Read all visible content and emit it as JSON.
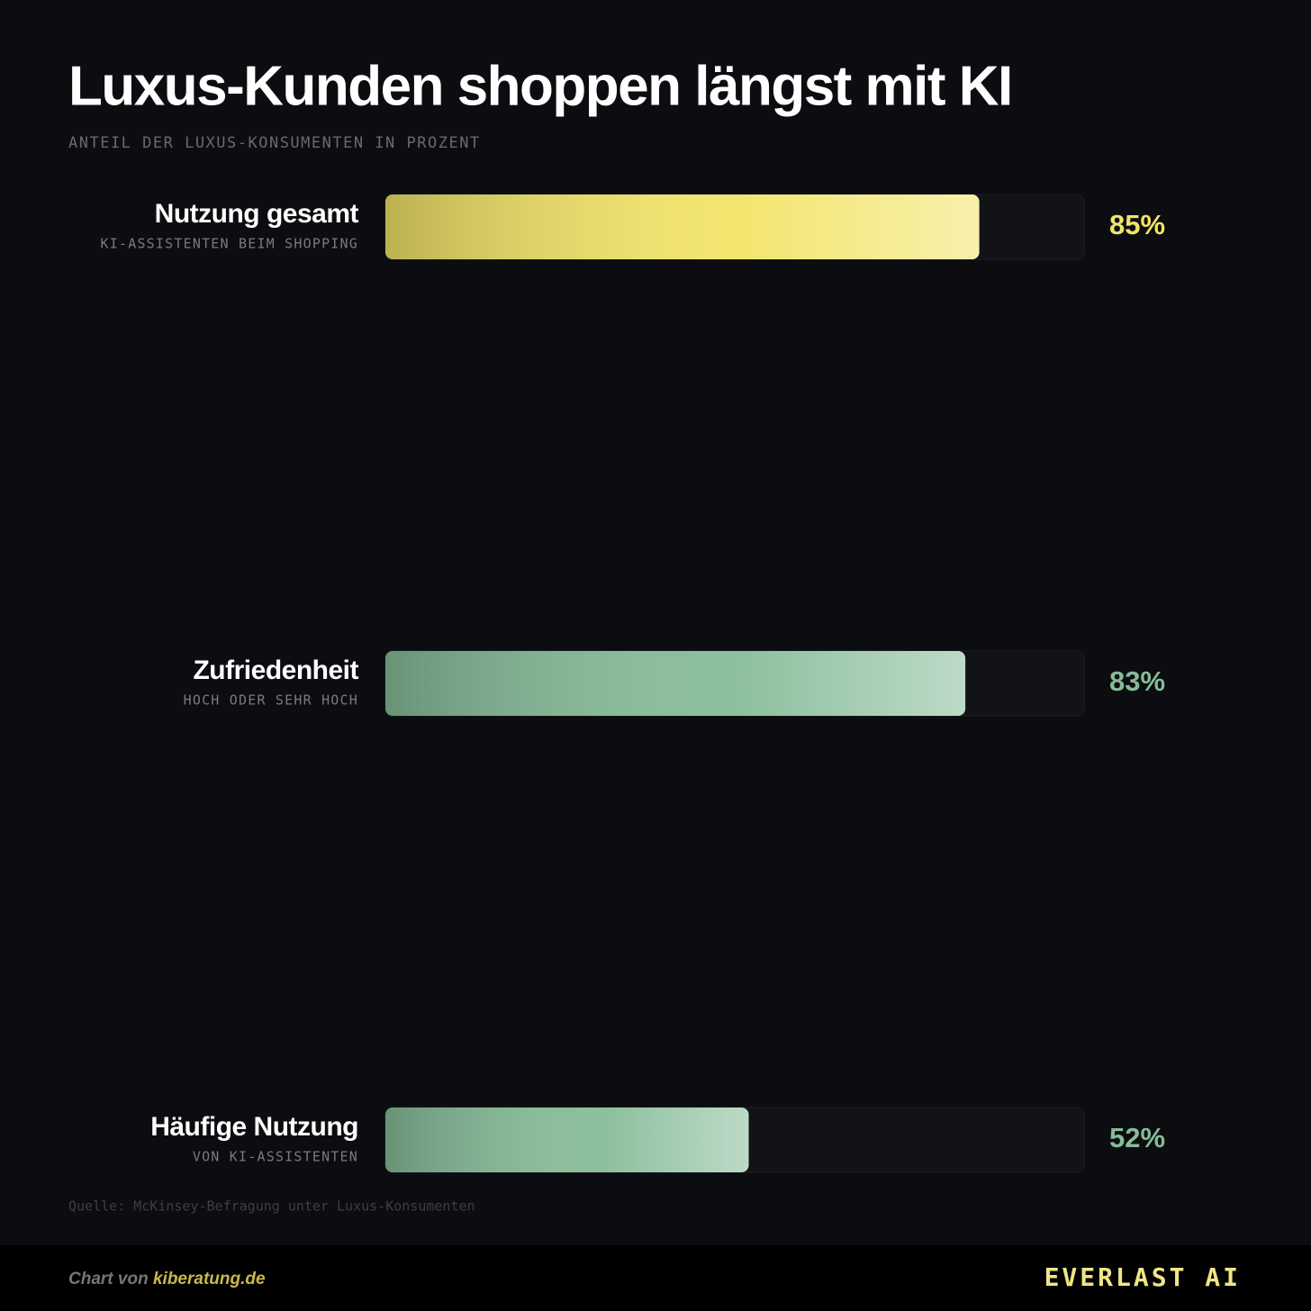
{
  "chart_data": {
    "type": "bar",
    "orientation": "horizontal",
    "title": "Luxus-Kunden shoppen längst mit KI",
    "subtitle": "ANTEIL DER LUXUS-KONSUMENTEN IN PROZENT",
    "categories": [
      "Nutzung gesamt",
      "Zufriedenheit",
      "Häufige Nutzung"
    ],
    "descriptions": [
      "KI-ASSISTENTEN BEIM SHOPPING",
      "HOCH ODER SEHR HOCH",
      "VON KI-ASSISTENTEN"
    ],
    "values": [
      85,
      83,
      52
    ],
    "value_labels": [
      "85%",
      "83%",
      "52%"
    ],
    "colors": [
      "#f2e468",
      "#86bc98",
      "#86bc98"
    ],
    "xlim": [
      0,
      100
    ],
    "source": "Quelle: McKinsey-Befragung unter Luxus-Konsumenten"
  },
  "footer": {
    "credit_prefix": "Chart von",
    "credit_link": "kiberatung.de",
    "brand": "EVERLAST AI"
  }
}
